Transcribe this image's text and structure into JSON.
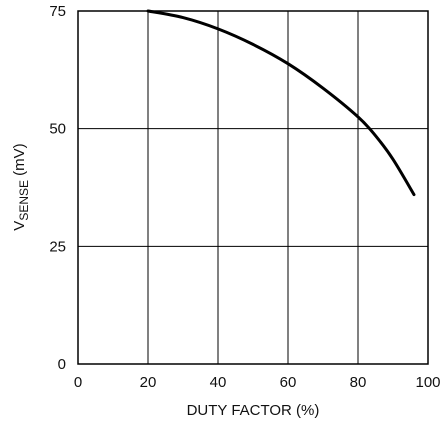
{
  "chart_data": {
    "type": "line",
    "xlabel": "DUTY FACTOR (%)",
    "ylabel": {
      "main": "V",
      "subscript": "SENSE",
      "suffix": " (mV)"
    },
    "xlim": [
      0,
      100
    ],
    "ylim": [
      0,
      75
    ],
    "x_ticks": [
      0,
      20,
      40,
      60,
      80,
      100
    ],
    "y_ticks": [
      0,
      25,
      50,
      75
    ],
    "x_tick_labels": [
      "0",
      "20",
      "40",
      "60",
      "80",
      "100"
    ],
    "y_tick_labels": [
      "0",
      "25",
      "50",
      "75"
    ],
    "grid": true,
    "series": [
      {
        "color": "#000000",
        "points": [
          [
            20,
            75.0
          ],
          [
            30,
            73.6
          ],
          [
            40,
            71.2
          ],
          [
            50,
            67.9
          ],
          [
            60,
            63.8
          ],
          [
            70,
            58.6
          ],
          [
            80,
            52.5
          ],
          [
            85,
            48.5
          ],
          [
            90,
            43.5
          ],
          [
            96,
            36.0
          ]
        ]
      }
    ]
  }
}
